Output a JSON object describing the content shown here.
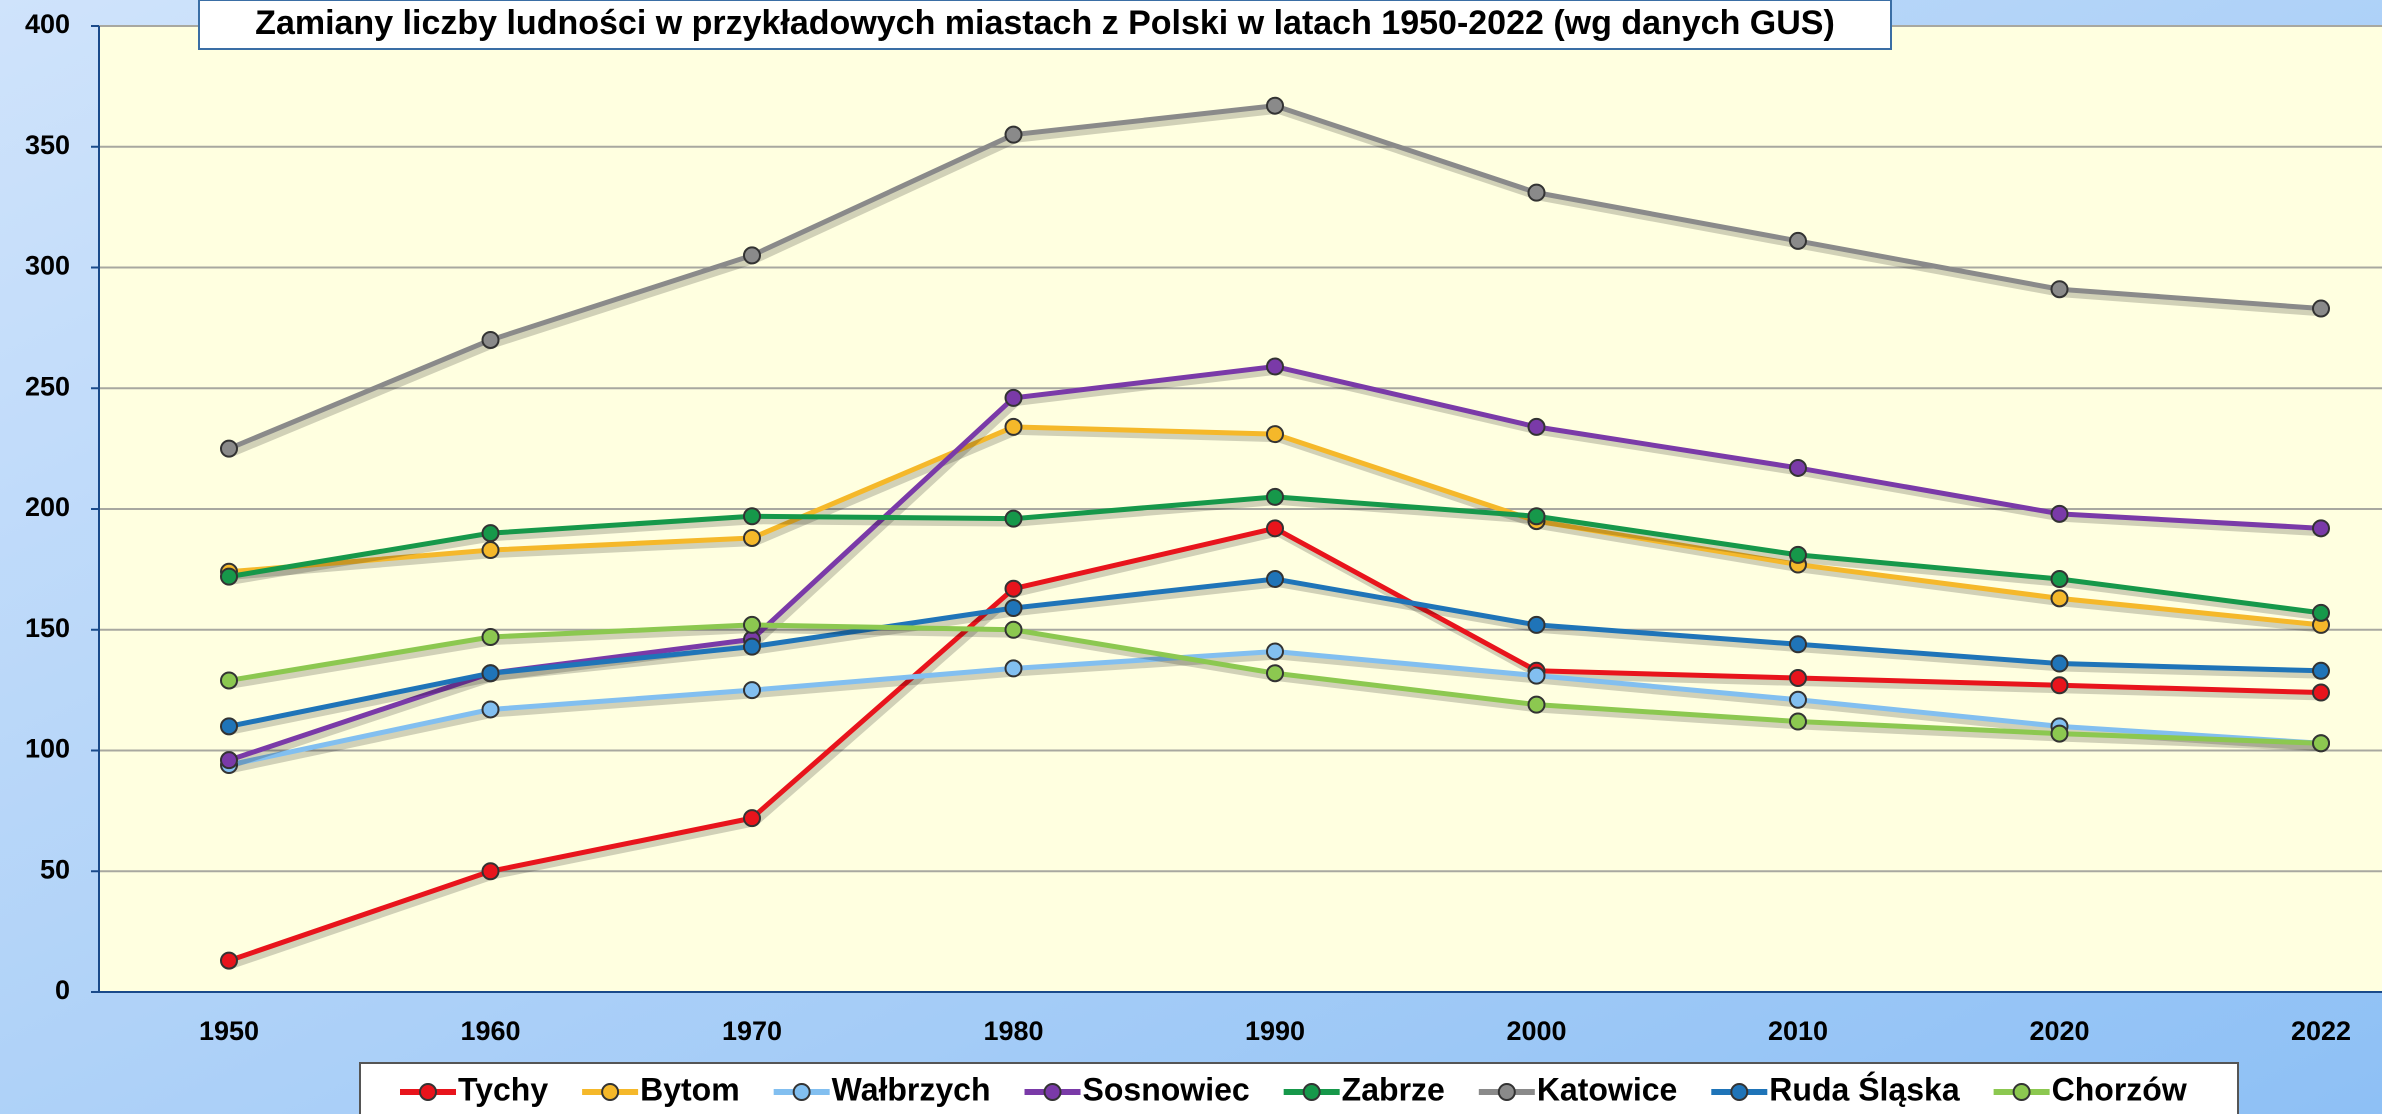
{
  "chart_data": {
    "type": "line",
    "title": "Zamiany liczby ludności w przykładowych miastach z Polski w latach 1950-2022 (wg danych GUS)",
    "categories": [
      "1950",
      "1960",
      "1970",
      "1980",
      "1990",
      "2000",
      "2010",
      "2020",
      "2022"
    ],
    "ylim": [
      0,
      400
    ],
    "yticks": [
      0,
      50,
      100,
      150,
      200,
      250,
      300,
      350,
      400
    ],
    "grid": true,
    "legend": "bottom",
    "series": [
      {
        "name": "Tychy",
        "color": "#e8141c",
        "values": [
          13,
          50,
          72,
          167,
          192,
          133,
          130,
          127,
          124
        ]
      },
      {
        "name": "Bytom",
        "color": "#f5b82a",
        "values": [
          174,
          183,
          188,
          234,
          231,
          195,
          177,
          163,
          152
        ]
      },
      {
        "name": "Wałbrzych",
        "color": "#82bff0",
        "values": [
          94,
          117,
          125,
          134,
          141,
          131,
          121,
          110,
          103
        ]
      },
      {
        "name": "Sosnowiec",
        "color": "#7a3aa8",
        "values": [
          96,
          132,
          146,
          246,
          259,
          234,
          217,
          198,
          192
        ]
      },
      {
        "name": "Zabrze",
        "color": "#16984a",
        "values": [
          172,
          190,
          197,
          196,
          205,
          197,
          181,
          171,
          157
        ]
      },
      {
        "name": "Katowice",
        "color": "#8a8a8a",
        "values": [
          225,
          270,
          305,
          355,
          367,
          331,
          311,
          291,
          283
        ]
      },
      {
        "name": "Ruda Śląska",
        "color": "#1f74b8",
        "values": [
          110,
          132,
          143,
          159,
          171,
          152,
          144,
          136,
          133
        ]
      },
      {
        "name": "Chorzów",
        "color": "#8cc850",
        "values": [
          129,
          147,
          152,
          150,
          132,
          119,
          112,
          107,
          103
        ]
      }
    ]
  }
}
